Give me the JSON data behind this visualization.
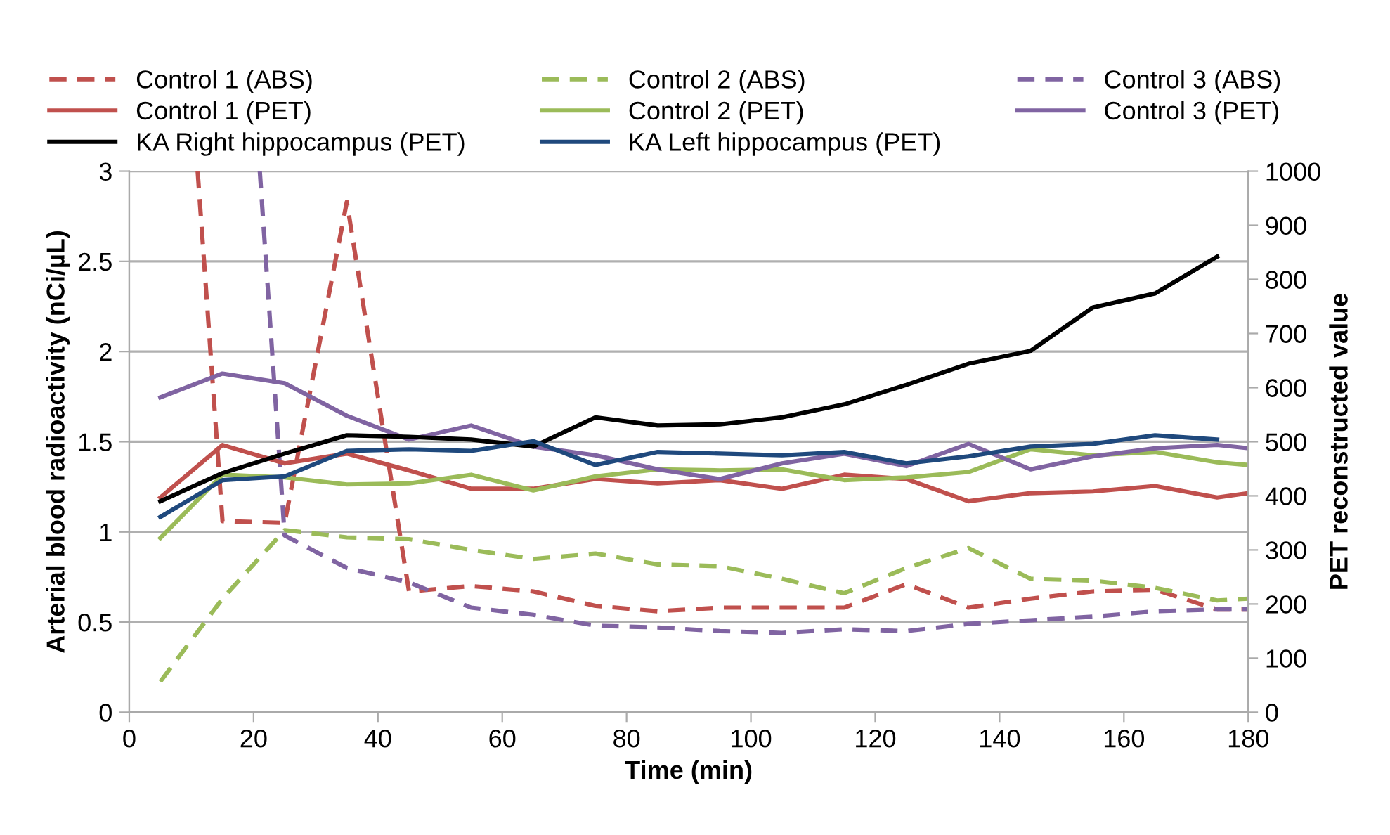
{
  "chart_data": {
    "type": "line",
    "xlabel": "Time (min)",
    "ylabel": "Arterial blood radioactivity (nCi/µL)",
    "y2label": "PET reconstructed value",
    "xlim": [
      0,
      180
    ],
    "xticks": [
      0,
      20,
      40,
      60,
      80,
      100,
      120,
      140,
      160,
      180
    ],
    "ylim": [
      0,
      3
    ],
    "yticks": [
      0,
      0.5,
      1,
      1.5,
      2,
      2.5,
      3
    ],
    "y2lim": [
      0,
      1000
    ],
    "y2ticks": [
      0,
      100,
      200,
      300,
      400,
      500,
      600,
      700,
      800,
      900,
      1000
    ],
    "grid": "y",
    "legend": "top",
    "marker": "none",
    "series": [
      {
        "name": "Control 1 (ABS)",
        "color": "#c0504d",
        "line_style": "dashed",
        "x": [
          11,
          15,
          25,
          35,
          45,
          55,
          65,
          75,
          85,
          95,
          105,
          115,
          125,
          135,
          145,
          155,
          165,
          175,
          180
        ],
        "values": [
          3,
          1.06,
          1.05,
          2.83,
          0.67,
          0.7,
          0.67,
          0.59,
          0.56,
          0.58,
          0.58,
          0.58,
          0.71,
          0.58,
          0.63,
          0.67,
          0.68,
          0.57,
          0.57
        ]
      },
      {
        "name": "Control 2 (ABS)",
        "color": "#9bbb59",
        "line_style": "dashed",
        "x": [
          5,
          15,
          25,
          35,
          45,
          55,
          65,
          75,
          85,
          95,
          105,
          115,
          125,
          135,
          145,
          155,
          165,
          175,
          180
        ],
        "values": [
          0.17,
          0.63,
          1.01,
          0.97,
          0.96,
          0.9,
          0.85,
          0.88,
          0.82,
          0.81,
          0.74,
          0.66,
          0.8,
          0.91,
          0.74,
          0.73,
          0.69,
          0.62,
          0.63
        ]
      },
      {
        "name": "Control 3 (ABS)",
        "color": "#8064a2",
        "line_style": "dashed",
        "x": [
          21,
          25,
          35,
          45,
          55,
          65,
          75,
          85,
          95,
          105,
          115,
          125,
          135,
          145,
          155,
          165,
          175,
          180
        ],
        "values": [
          3,
          0.98,
          0.8,
          0.72,
          0.58,
          0.54,
          0.48,
          0.47,
          0.45,
          0.44,
          0.46,
          0.45,
          0.49,
          0.51,
          0.53,
          0.56,
          0.57,
          0.57
        ]
      },
      {
        "name": "Control 1 (PET)",
        "color": "#c0504d",
        "line_style": "solid",
        "axis": "y2",
        "x": [
          5,
          15,
          25,
          35,
          45,
          55,
          65,
          75,
          85,
          95,
          105,
          115,
          125,
          135,
          145,
          155,
          165,
          175,
          180
        ],
        "values": [
          397,
          494,
          460,
          478,
          447,
          413,
          413,
          431,
          423,
          429,
          413,
          439,
          431,
          390,
          405,
          408,
          418,
          397,
          405
        ]
      },
      {
        "name": "Control 2 (PET)",
        "color": "#9bbb59",
        "line_style": "solid",
        "axis": "y2",
        "x": [
          5,
          15,
          25,
          35,
          45,
          55,
          65,
          75,
          85,
          95,
          105,
          115,
          125,
          135,
          145,
          155,
          165,
          175,
          180
        ],
        "values": [
          322,
          439,
          434,
          421,
          423,
          439,
          410,
          436,
          449,
          447,
          449,
          429,
          434,
          444,
          486,
          475,
          481,
          462,
          457
        ]
      },
      {
        "name": "Control 3 (PET)",
        "color": "#8064a2",
        "line_style": "solid",
        "axis": "y2",
        "x": [
          5,
          15,
          25,
          35,
          45,
          55,
          65,
          75,
          85,
          95,
          105,
          115,
          125,
          135,
          145,
          155,
          165,
          175,
          180
        ],
        "values": [
          582,
          626,
          608,
          548,
          504,
          530,
          491,
          475,
          449,
          431,
          460,
          478,
          455,
          496,
          449,
          473,
          488,
          494,
          488
        ]
      },
      {
        "name": "KA Right hippocampus (PET)",
        "color": "#000000",
        "line_style": "solid",
        "axis": "y2",
        "x": [
          5,
          15,
          25,
          35,
          45,
          55,
          65,
          75,
          85,
          95,
          105,
          115,
          125,
          135,
          145,
          155,
          165,
          175
        ],
        "values": [
          390,
          442,
          478,
          512,
          509,
          504,
          491,
          545,
          530,
          532,
          545,
          569,
          605,
          644,
          668,
          748,
          774,
          842
        ]
      },
      {
        "name": "KA Left hippocampus (PET)",
        "color": "#1f497d",
        "line_style": "solid",
        "axis": "y2",
        "x": [
          5,
          15,
          25,
          35,
          45,
          55,
          65,
          75,
          85,
          95,
          105,
          115,
          125,
          135,
          145,
          155,
          165,
          175
        ],
        "values": [
          361,
          429,
          436,
          483,
          486,
          483,
          501,
          457,
          481,
          478,
          475,
          481,
          460,
          473,
          491,
          496,
          512,
          504
        ]
      }
    ]
  }
}
